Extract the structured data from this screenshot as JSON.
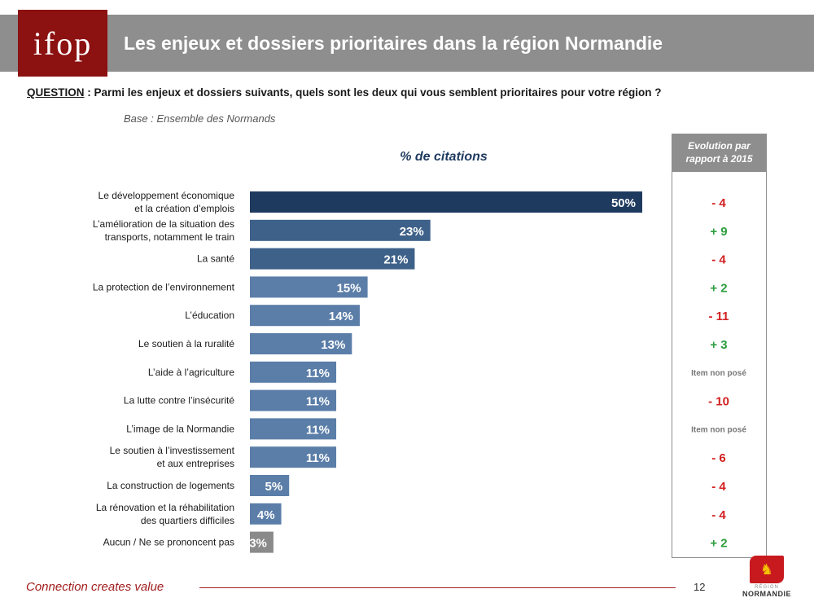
{
  "header": {
    "logo_text": "ifop",
    "title": "Les enjeux et dossiers prioritaires dans la région Normandie"
  },
  "question": {
    "label": "QUESTION",
    "text": " : Parmi les enjeux et dossiers suivants, quels sont les deux qui vous semblent prioritaires pour votre région ?"
  },
  "base": "Base : Ensemble des Normands",
  "evolution_header": "Evolution par rapport à 2015",
  "chart_data": {
    "type": "bar",
    "orientation": "horizontal",
    "title": "% de citations",
    "categories": [
      "Le développement économique et la création d’emplois",
      "L’amélioration de la situation des transports, notamment le train",
      "La santé",
      "La protection de l’environnement",
      "L’éducation",
      "Le soutien à la ruralité",
      "L’aide à l’agriculture",
      "La lutte contre l’insécurité",
      "L’image de la Normandie",
      "Le soutien à l’investissement et aux entreprises",
      "La construction de logements",
      "La rénovation et la réhabilitation des quartiers difficiles",
      "Aucun / Ne se prononcent pas"
    ],
    "category_lines": [
      [
        "Le développement économique",
        "et la création d’emplois"
      ],
      [
        "L’amélioration de la situation des",
        "transports, notamment le train"
      ],
      [
        "La santé"
      ],
      [
        "La protection de l’environnement"
      ],
      [
        "L’éducation"
      ],
      [
        "Le soutien à la ruralité"
      ],
      [
        "L’aide à l’agriculture"
      ],
      [
        "La lutte contre l’insécurité"
      ],
      [
        "L’image de la Normandie"
      ],
      [
        "Le soutien à l’investissement",
        "et aux entreprises"
      ],
      [
        "La construction de logements"
      ],
      [
        "La rénovation et la réhabilitation",
        "des quartiers difficiles"
      ],
      [
        "Aucun / Ne se prononcent pas"
      ]
    ],
    "values": [
      50,
      23,
      21,
      15,
      14,
      13,
      11,
      11,
      11,
      11,
      5,
      4,
      3
    ],
    "value_labels": [
      "50%",
      "23%",
      "21%",
      "15%",
      "14%",
      "13%",
      "11%",
      "11%",
      "11%",
      "11%",
      "5%",
      "4%",
      "3%"
    ],
    "evolution": [
      "- 4",
      "+ 9",
      "- 4",
      "+ 2",
      "- 11",
      "+ 3",
      "Item non posé",
      "- 10",
      "Item non posé",
      "- 6",
      "- 4",
      "- 4",
      "+ 2"
    ],
    "evolution_type": [
      "neg",
      "pos",
      "neg",
      "pos",
      "neg",
      "pos",
      "na",
      "neg",
      "na",
      "neg",
      "neg",
      "neg",
      "pos"
    ],
    "bar_colors": [
      "#1f3a5f",
      "#3e6189",
      "#3e6189",
      "#5b7ea8",
      "#5b7ea8",
      "#5b7ea8",
      "#5b7ea8",
      "#5b7ea8",
      "#5b7ea8",
      "#5b7ea8",
      "#5b7ea8",
      "#5b7ea8",
      "#8a8a8a"
    ],
    "colors": {
      "negative": "#d32020",
      "positive": "#2e9e3e",
      "na": "#777777",
      "label": "#1a1a1a",
      "bar_text": "#ffffff"
    },
    "xlim": [
      0,
      50
    ],
    "grid": false
  },
  "footer": {
    "tagline": "Connection creates value",
    "page_number": "12",
    "region_logo_small": "RÉGION",
    "region_logo_name": "NORMANDIE"
  }
}
